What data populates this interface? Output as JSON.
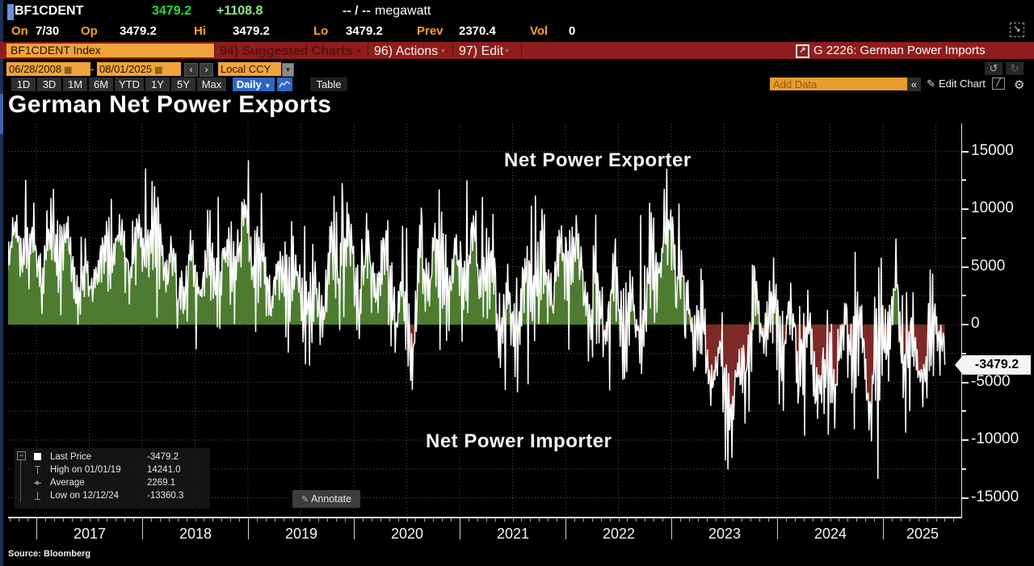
{
  "terminal": {
    "ticker": "BF1CDENT",
    "last": "3479.2",
    "change": "+1108.8",
    "bid_ask": "-- / --",
    "unit": "megawatt",
    "stats": [
      {
        "label": "On",
        "value": "7/30"
      },
      {
        "label": "Op",
        "value": "3479.2"
      },
      {
        "label": "Hi",
        "value": "3479.2"
      },
      {
        "label": "Lo",
        "value": "3479.2"
      },
      {
        "label": "Prev",
        "value": "2370.4"
      },
      {
        "label": "Vol",
        "value": "0"
      }
    ]
  },
  "menubar": {
    "security_input": "BF1CDENT Index",
    "suggested_charts": "94) Suggested Charts",
    "actions": "96) Actions",
    "edit": "97) Edit",
    "chart_id": "G 2226: German Power Imports"
  },
  "controls": {
    "date_from": "06/28/2008",
    "date_to": "08/01/2025",
    "date_separator": "-",
    "currency": "Local CCY",
    "periods": [
      "1D",
      "3D",
      "1M",
      "6M",
      "YTD",
      "1Y",
      "5Y",
      "Max"
    ],
    "frequency": "Daily",
    "table_label": "Table",
    "add_data_placeholder": "Add Data",
    "edit_chart_label": "Edit Chart"
  },
  "chart": {
    "title": "German Net Power Exports",
    "annotation_top": "Net Power Exporter",
    "annotation_bottom": "Net Power Importer",
    "annotate_button": "Annotate",
    "last_price_tag": "-3479.2",
    "source": "Source: Bloomberg",
    "legend": [
      {
        "glyph": "square",
        "label": "Last Price",
        "value": "-3479.2"
      },
      {
        "glyph": "high",
        "label": "High on 01/01/19",
        "value": "14241.0"
      },
      {
        "glyph": "avg",
        "label": "Average",
        "value": "2269.1"
      },
      {
        "glyph": "low",
        "label": "Low on 12/12/24",
        "value": "-13360.3"
      }
    ]
  },
  "colors": {
    "amber_label": "#ffa028",
    "orange_box": "#f0a43c",
    "menu_bar_red": "#8f1d1d",
    "selected_blue": "#2f66c4",
    "price_green": "#19e332",
    "change_green": "#8fe98f"
  },
  "chart_data": {
    "type": "line",
    "title": "German Net Power Exports",
    "unit": "megawatt",
    "x_start": 2016.73,
    "x_end": 2025.585,
    "x_tick_years": [
      2017,
      2018,
      2019,
      2020,
      2021,
      2022,
      2023,
      2024,
      2025
    ],
    "y_ticks": [
      -15000,
      -10000,
      -5000,
      0,
      5000,
      10000,
      15000
    ],
    "y_minor_step": 2500,
    "ylim": [
      -16650,
      17400
    ],
    "grid": true,
    "legend_position": "bottom-left",
    "last_price": -3479.2,
    "high": {
      "date": "01/01/19",
      "value": 14241.0
    },
    "low": {
      "date": "12/12/24",
      "value": -13360.3
    },
    "average": 2269.1,
    "line_color": "#ffffff",
    "positive_fill": "#4d7c30",
    "negative_fill": "#7d2a26",
    "envelope_lo_hi": [
      [
        2016.73,
        -500,
        11500
      ],
      [
        2017.0,
        500,
        13200
      ],
      [
        2017.2,
        800,
        12000
      ],
      [
        2017.45,
        -300,
        9000
      ],
      [
        2017.6,
        400,
        9500
      ],
      [
        2017.9,
        1500,
        13400
      ],
      [
        2018.1,
        400,
        13800
      ],
      [
        2018.35,
        -500,
        10500
      ],
      [
        2018.55,
        -2600,
        9000
      ],
      [
        2018.8,
        400,
        12500
      ],
      [
        2019.0,
        -600,
        14241
      ],
      [
        2019.2,
        -1600,
        11000
      ],
      [
        2019.5,
        -5600,
        8500
      ],
      [
        2019.7,
        -2600,
        10000
      ],
      [
        2019.95,
        -1600,
        13200
      ],
      [
        2020.2,
        -2600,
        11000
      ],
      [
        2020.5,
        -6600,
        8500
      ],
      [
        2020.75,
        -2100,
        11500
      ],
      [
        2021.0,
        -2600,
        13200
      ],
      [
        2021.3,
        -3600,
        10500
      ],
      [
        2021.55,
        -7600,
        8000
      ],
      [
        2021.8,
        -2100,
        12800
      ],
      [
        2022.05,
        -3600,
        13000
      ],
      [
        2022.3,
        -4600,
        10000
      ],
      [
        2022.55,
        -7600,
        7500
      ],
      [
        2022.8,
        -4600,
        11000
      ],
      [
        2022.95,
        -1600,
        13600
      ],
      [
        2023.02,
        200,
        13800
      ],
      [
        2023.12,
        -600,
        8000
      ],
      [
        2023.35,
        -11600,
        3500
      ],
      [
        2023.6,
        -12900,
        2500
      ],
      [
        2023.8,
        -8600,
        6500
      ],
      [
        2024.0,
        -6600,
        9800
      ],
      [
        2024.2,
        -9600,
        5000
      ],
      [
        2024.5,
        -11600,
        3500
      ],
      [
        2024.75,
        -10600,
        6800
      ],
      [
        2024.95,
        -13360,
        8000
      ],
      [
        2025.1,
        -8600,
        9200
      ],
      [
        2025.3,
        -9900,
        5500
      ],
      [
        2025.5,
        -8600,
        4500
      ],
      [
        2025.585,
        -6000,
        4500
      ]
    ]
  }
}
